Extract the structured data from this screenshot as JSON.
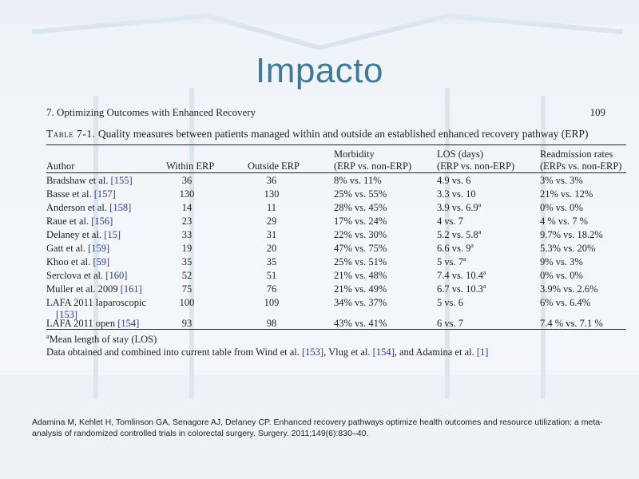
{
  "slide": {
    "title": "Impacto"
  },
  "page_header": {
    "chapter": "7.   Optimizing Outcomes with Enhanced Recovery",
    "page_number": "109"
  },
  "table": {
    "label": "Table 7-1.",
    "caption": "Quality measures between patients managed within and outside an established enhanced recovery pathway (ERP)",
    "headers": {
      "author": "Author",
      "within": "Within ERP",
      "outside": "Outside ERP",
      "morbidity_top": "Morbidity",
      "morbidity_sub": "(ERP vs. non-ERP)",
      "los_top": "LOS (days)",
      "los_sub": "(ERP vs. non-ERP)",
      "readm_top": "Readmission rates",
      "readm_sub": "(ERPs vs. non-ERP)"
    },
    "rows": [
      {
        "author": "Bradshaw et al. ",
        "ref": "[155]",
        "within": "36",
        "outside": "36",
        "morbidity": "8% vs. 11%",
        "los": "4.9 vs. 6",
        "los_sup": "",
        "readmission": "3% vs. 3%"
      },
      {
        "author": "Basse et al. ",
        "ref": "[157]",
        "within": "130",
        "outside": "130",
        "morbidity": "25% vs. 55%",
        "los": "3.3 vs. 10",
        "los_sup": "",
        "readmission": "21% vs. 12%"
      },
      {
        "author": "Anderson et al. ",
        "ref": "[158]",
        "within": "14",
        "outside": "11",
        "morbidity": "28% vs. 45%",
        "los": "3.9 vs. 6.9",
        "los_sup": "a",
        "readmission": "0% vs. 0%"
      },
      {
        "author": "Raue et al. ",
        "ref": "[156]",
        "within": "23",
        "outside": "29",
        "morbidity": "17% vs. 24%",
        "los": "4 vs. 7",
        "los_sup": "",
        "readmission": "4 % vs. 7 %"
      },
      {
        "author": "Delaney et al. ",
        "ref": "[15]",
        "within": "33",
        "outside": "31",
        "morbidity": "22% vs. 30%",
        "los": "5.2 vs. 5.8",
        "los_sup": "a",
        "readmission": "9.7% vs. 18.2%"
      },
      {
        "author": "Gatt et al. ",
        "ref": "[159]",
        "within": "19",
        "outside": "20",
        "morbidity": "47% vs. 75%",
        "los": "6.6 vs. 9",
        "los_sup": "a",
        "readmission": "5.3% vs. 20%"
      },
      {
        "author": "Khoo et al. ",
        "ref": "[59]",
        "within": "35",
        "outside": "35",
        "morbidity": "25% vs. 51%",
        "los": "5 vs. 7",
        "los_sup": "a",
        "readmission": "9% vs. 3%"
      },
      {
        "author": "Serclova et al. ",
        "ref": "[160]",
        "within": "52",
        "outside": "51",
        "morbidity": "21% vs. 48%",
        "los": "7.4 vs. 10.4",
        "los_sup": "a",
        "readmission": "0% vs. 0%"
      },
      {
        "author": "Muller et al. 2009 ",
        "ref": "[161]",
        "within": "75",
        "outside": "76",
        "morbidity": "21% vs. 49%",
        "los": "6.7 vs. 10.3",
        "los_sup": "a",
        "readmission": "3.9% vs. 2.6%"
      },
      {
        "author": "LAFA 2011 laparoscopic",
        "author_cont": "[153]",
        "ref": "",
        "within": "100",
        "outside": "109",
        "morbidity": "34% vs. 37%",
        "los": "5 vs. 6",
        "los_sup": "",
        "readmission": "6% vs. 6.4%"
      },
      {
        "author": "LAFA 2011 open ",
        "ref": "[154]",
        "within": "93",
        "outside": "98",
        "morbidity": "43% vs. 41%",
        "los": "6 vs. 7",
        "los_sup": "",
        "readmission": "7.4 % vs. 7.1 %"
      }
    ],
    "footnote_a": "Mean length of stay (LOS)",
    "footnote_a_marker": "a",
    "data_note": {
      "prefix": "Data obtained and combined into current table from Wind et al. ",
      "ref1": "[153]",
      "mid1": ", Vlug et al. ",
      "ref2": "[154]",
      "mid2": ", and Adamina et al. ",
      "ref3": "[1]"
    }
  },
  "citation": "Adamina M, Kehlet H, Tomlinson GA, Senagore  AJ, Delaney CP. Enhanced  recovery pathways optimize health outcomes and resource utilization: a meta-analysis of randomized controlled trials in colorectal surgery. Surgery. 2011;149(6):830–40."
}
